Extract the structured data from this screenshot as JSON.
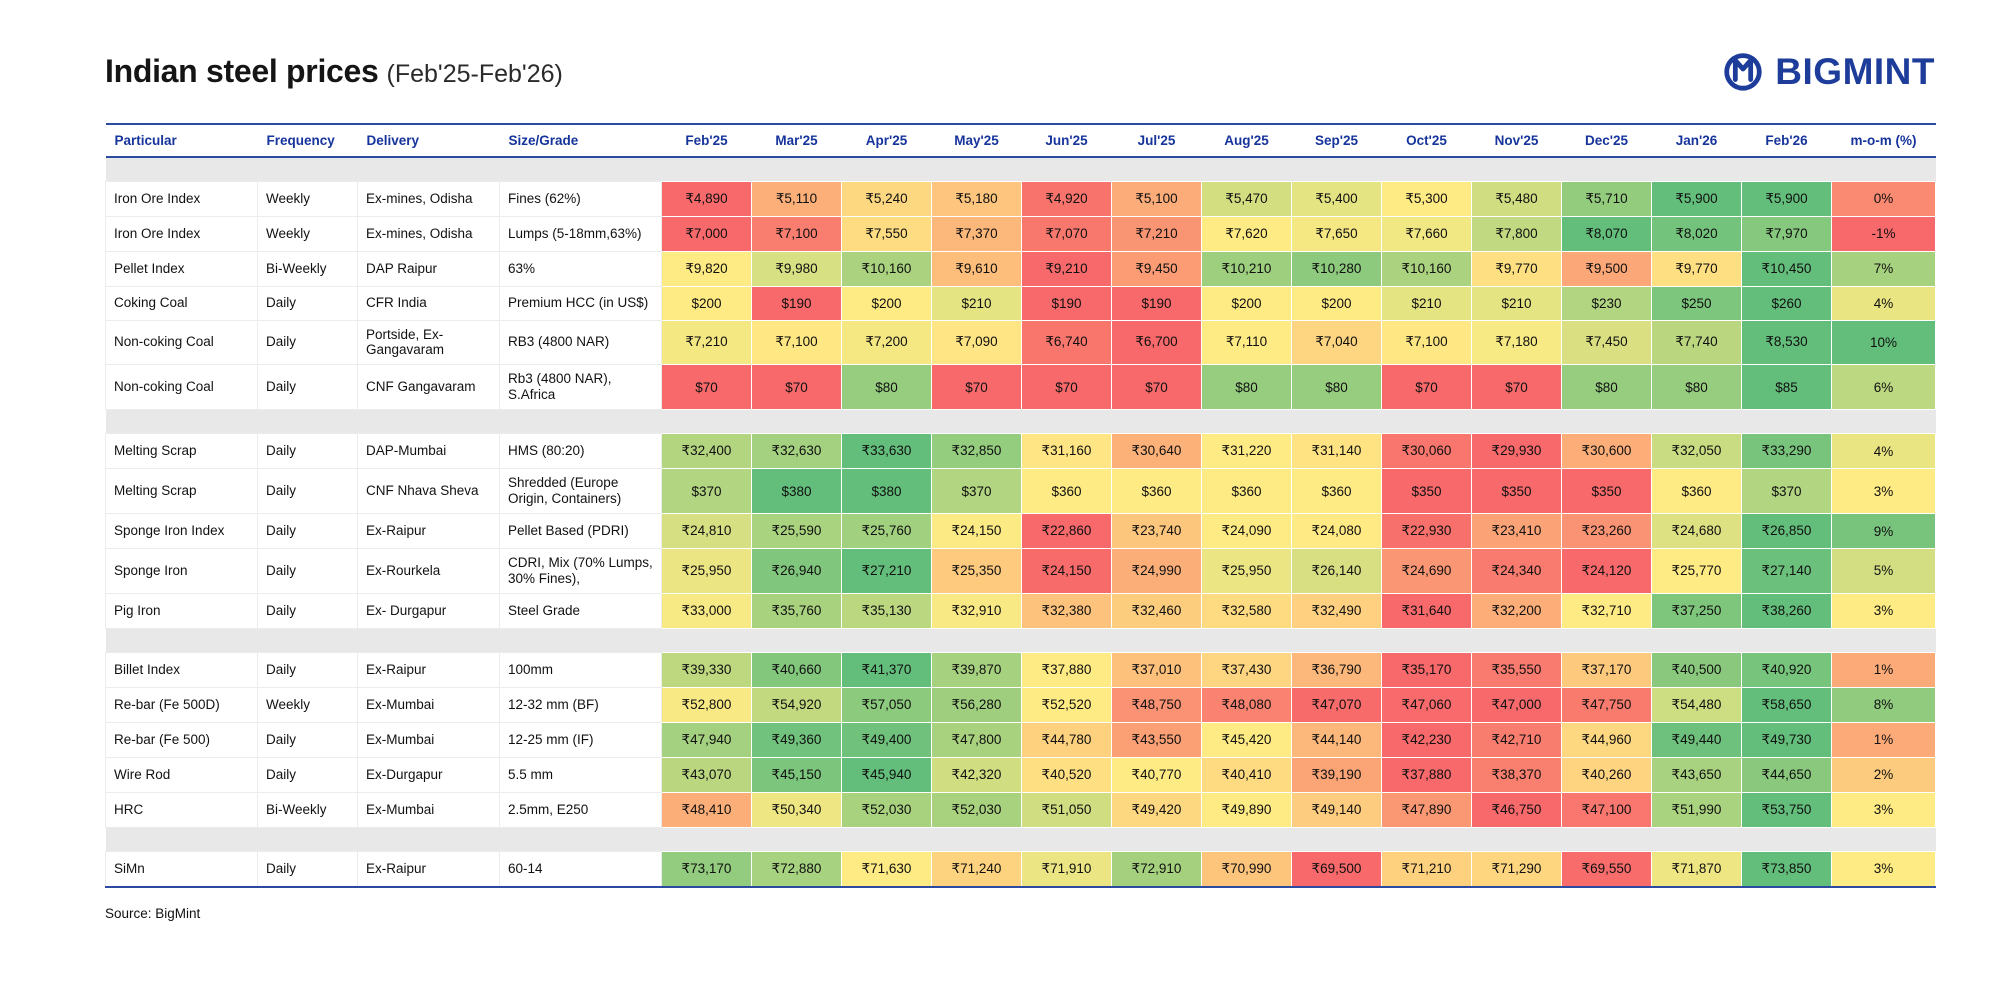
{
  "page": {
    "title": "Indian steel prices",
    "subtitle": "(Feb'25-Feb'26)",
    "brand": "BIGMINT",
    "source": "Source: BigMint"
  },
  "currency": {
    "inr": "₹",
    "usd": "$"
  },
  "colors": {
    "header_blue": "#16349c",
    "line_blue": "#2c4aa0",
    "brand_blue": "#1e3d9b",
    "spacer_gray": "#e8e8e8",
    "scale_low": "#F8696B",
    "scale_mid": "#FFEB84",
    "scale_high": "#63BE7B"
  },
  "chart_data": {
    "type": "table",
    "title": "Indian steel prices (Feb'25-Feb'26)",
    "meta_columns": [
      "Particular",
      "Frequency",
      "Delivery",
      "Size/Grade"
    ],
    "months": [
      "Feb'25",
      "Mar'25",
      "Apr'25",
      "May'25",
      "Jun'25",
      "Jul'25",
      "Aug'25",
      "Sep'25",
      "Oct'25",
      "Nov'25",
      "Dec'25",
      "Jan'26",
      "Feb'26"
    ],
    "mom_label": "m-o-m (%)",
    "groups": [
      {
        "rows": [
          {
            "particular": "Iron Ore Index",
            "frequency": "Weekly",
            "delivery": "Ex-mines, Odisha",
            "size_grade": "Fines (62%)",
            "unit": "inr",
            "values": [
              4890,
              5110,
              5240,
              5180,
              4920,
              5100,
              5470,
              5400,
              5300,
              5480,
              5710,
              5900,
              5900
            ],
            "mom": 0
          },
          {
            "particular": "Iron Ore Index",
            "frequency": "Weekly",
            "delivery": "Ex-mines, Odisha",
            "size_grade": "Lumps (5-18mm,63%)",
            "unit": "inr",
            "values": [
              7000,
              7100,
              7550,
              7370,
              7070,
              7210,
              7620,
              7650,
              7660,
              7800,
              8070,
              8020,
              7970
            ],
            "mom": -1
          },
          {
            "particular": "Pellet Index",
            "frequency": "Bi-Weekly",
            "delivery": "DAP Raipur",
            "size_grade": "63%",
            "unit": "inr",
            "values": [
              9820,
              9980,
              10160,
              9610,
              9210,
              9450,
              10210,
              10280,
              10160,
              9770,
              9500,
              9770,
              10450
            ],
            "mom": 7
          },
          {
            "particular": "Coking Coal",
            "frequency": "Daily",
            "delivery": "CFR India",
            "size_grade": "Premium HCC (in US$)",
            "unit": "usd",
            "values": [
              200,
              190,
              200,
              210,
              190,
              190,
              200,
              200,
              210,
              210,
              230,
              250,
              260
            ],
            "mom": 4
          },
          {
            "particular": "Non-coking Coal",
            "frequency": "Daily",
            "delivery": "Portside, Ex-Gangavaram",
            "size_grade": "RB3 (4800 NAR)",
            "unit": "inr",
            "values": [
              7210,
              7100,
              7200,
              7090,
              6740,
              6700,
              7110,
              7040,
              7100,
              7180,
              7450,
              7740,
              8530
            ],
            "mom": 10
          },
          {
            "particular": "Non-coking Coal",
            "frequency": "Daily",
            "delivery": "CNF Gangavaram",
            "size_grade": "Rb3 (4800 NAR), S.Africa",
            "unit": "usd",
            "values": [
              70,
              70,
              80,
              70,
              70,
              70,
              80,
              80,
              70,
              70,
              80,
              80,
              85
            ],
            "mom": 6
          }
        ]
      },
      {
        "rows": [
          {
            "particular": "Melting Scrap",
            "frequency": "Daily",
            "delivery": "DAP-Mumbai",
            "size_grade": "HMS (80:20)",
            "unit": "inr",
            "values": [
              32400,
              32630,
              33630,
              32850,
              31160,
              30640,
              31220,
              31140,
              30060,
              29930,
              30600,
              32050,
              33290
            ],
            "mom": 4
          },
          {
            "particular": "Melting Scrap",
            "frequency": "Daily",
            "delivery": "CNF Nhava Sheva",
            "size_grade": "Shredded (Europe Origin, Containers)",
            "unit": "usd",
            "values": [
              370,
              380,
              380,
              370,
              360,
              360,
              360,
              360,
              350,
              350,
              350,
              360,
              370
            ],
            "mom": 3
          },
          {
            "particular": "Sponge Iron Index",
            "frequency": "Daily",
            "delivery": "Ex-Raipur",
            "size_grade": "Pellet Based (PDRI)",
            "unit": "inr",
            "values": [
              24810,
              25590,
              25760,
              24150,
              22860,
              23740,
              24090,
              24080,
              22930,
              23410,
              23260,
              24680,
              26850
            ],
            "mom": 9
          },
          {
            "particular": "Sponge Iron",
            "frequency": "Daily",
            "delivery": "Ex-Rourkela",
            "size_grade": "CDRI, Mix (70% Lumps, 30% Fines),",
            "unit": "inr",
            "values": [
              25950,
              26940,
              27210,
              25350,
              24150,
              24990,
              25950,
              26140,
              24690,
              24340,
              24120,
              25770,
              27140
            ],
            "mom": 5
          },
          {
            "particular": "Pig Iron",
            "frequency": "Daily",
            "delivery": "Ex- Durgapur",
            "size_grade": "Steel Grade",
            "unit": "inr",
            "values": [
              33000,
              35760,
              35130,
              32910,
              32380,
              32460,
              32580,
              32490,
              31640,
              32200,
              32710,
              37250,
              38260
            ],
            "mom": 3
          }
        ]
      },
      {
        "rows": [
          {
            "particular": "Billet Index",
            "frequency": "Daily",
            "delivery": "Ex-Raipur",
            "size_grade": "100mm",
            "unit": "inr",
            "values": [
              39330,
              40660,
              41370,
              39870,
              37880,
              37010,
              37430,
              36790,
              35170,
              35550,
              37170,
              40500,
              40920
            ],
            "mom": 1
          },
          {
            "particular": "Re-bar (Fe 500D)",
            "frequency": "Weekly",
            "delivery": "Ex-Mumbai",
            "size_grade": "12-32 mm (BF)",
            "unit": "inr",
            "values": [
              52800,
              54920,
              57050,
              56280,
              52520,
              48750,
              48080,
              47070,
              47060,
              47000,
              47750,
              54480,
              58650
            ],
            "mom": 8
          },
          {
            "particular": "Re-bar (Fe 500)",
            "frequency": "Daily",
            "delivery": "Ex-Mumbai",
            "size_grade": "12-25 mm (IF)",
            "unit": "inr",
            "values": [
              47940,
              49360,
              49400,
              47800,
              44780,
              43550,
              45420,
              44140,
              42230,
              42710,
              44960,
              49440,
              49730
            ],
            "mom": 1
          },
          {
            "particular": "Wire Rod",
            "frequency": "Daily",
            "delivery": "Ex-Durgapur",
            "size_grade": "5.5 mm",
            "unit": "inr",
            "values": [
              43070,
              45150,
              45940,
              42320,
              40520,
              40770,
              40410,
              39190,
              37880,
              38370,
              40260,
              43650,
              44650
            ],
            "mom": 2
          },
          {
            "particular": "HRC",
            "frequency": "Bi-Weekly",
            "delivery": "Ex-Mumbai",
            "size_grade": "2.5mm, E250",
            "unit": "inr",
            "values": [
              48410,
              50340,
              52030,
              52030,
              51050,
              49420,
              49890,
              49140,
              47890,
              46750,
              47100,
              51990,
              53750
            ],
            "mom": 3
          }
        ]
      },
      {
        "rows": [
          {
            "particular": "SiMn",
            "frequency": "Daily",
            "delivery": "Ex-Raipur",
            "size_grade": "60-14",
            "unit": "inr",
            "values": [
              73170,
              72880,
              71630,
              71240,
              71910,
              72910,
              70990,
              69500,
              71210,
              71290,
              69550,
              71870,
              73850
            ],
            "mom": 3
          }
        ]
      }
    ]
  }
}
